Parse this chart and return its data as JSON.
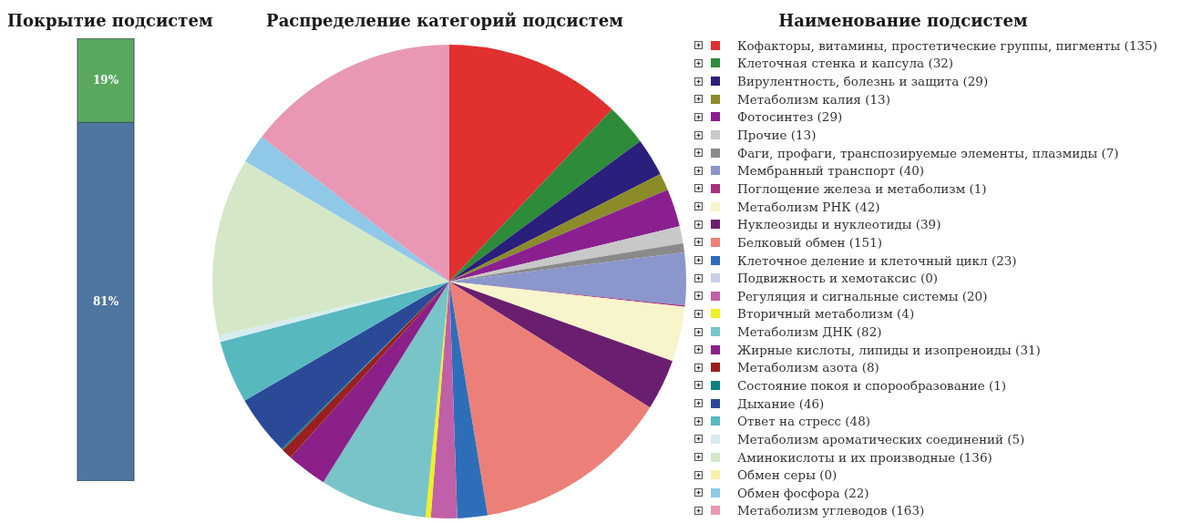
{
  "chart_data": [
    {
      "type": "bar",
      "title": "Покрытие подсистем",
      "categories": [
        null
      ],
      "stacked": true,
      "tick_labels": false,
      "series": [
        {
          "color": "#4e76a0",
          "values": [
            81
          ],
          "value_labels": [
            "81%"
          ]
        },
        {
          "color": "#5aa860",
          "values": [
            19
          ],
          "value_labels": [
            "19%"
          ]
        }
      ]
    },
    {
      "type": "pie",
      "title": "Распределение категорий подсистем",
      "legend_title": "Наименование подсистем",
      "legend": "right",
      "categories": [
        "Кофакторы, витамины, простетические группы, пигменты (135)",
        "Клеточная стенка и капсула (32)",
        "Вирулентность, болезнь и защита (29)",
        "Метаболизм калия (13)",
        "Фотосинтез (29)",
        "Прочие (13)",
        "Фаги, профаги, транспозируемые элементы, плазмиды (7)",
        "Мембранный транспорт (40)",
        "Поглощение железа и метаболизм (1)",
        "Метаболизм РНК (42)",
        "Нуклеозиды и нуклеотиды (39)",
        "Белковый обмен (151)",
        "Клеточное деление и клеточный цикл (23)",
        "Подвижность и хемотаксис (0)",
        "Регуляция и сигнальные системы (20)",
        "Вторичный метаболизм (4)",
        "Метаболизм ДНК (82)",
        "Жирные кислоты, липиды и изопреноиды (31)",
        "Метаболизм азота (8)",
        "Состояние покоя и спорообразование (1)",
        "Дыхание (46)",
        "Ответ на стресс (48)",
        "Метаболизм ароматических соединений (5)",
        "Аминокислоты и их производные (136)",
        "Обмен серы (0)",
        "Обмен фосфора (22)",
        "Метаболизм углеводов (163)"
      ],
      "values": [
        135,
        32,
        29,
        13,
        29,
        13,
        7,
        40,
        1,
        42,
        39,
        151,
        23,
        0,
        20,
        4,
        82,
        31,
        8,
        1,
        46,
        48,
        5,
        136,
        0,
        22,
        163
      ],
      "colors": [
        "#e03030",
        "#2e8b3a",
        "#2a1f7a",
        "#8b8b2a",
        "#8a2090",
        "#c8c8c8",
        "#8a8a8a",
        "#8a96cc",
        "#a8307a",
        "#f8f4cc",
        "#6a1f6e",
        "#ec8078",
        "#2e6eb8",
        "#c8d0e8",
        "#c060a8",
        "#f0f020",
        "#78c4c8",
        "#8a2088",
        "#9a2020",
        "#0a8080",
        "#2a4a98",
        "#58b8c0",
        "#d8ecf0",
        "#d4e8c8",
        "#f8f0a8",
        "#90c8e8",
        "#e898b4"
      ]
    }
  ]
}
